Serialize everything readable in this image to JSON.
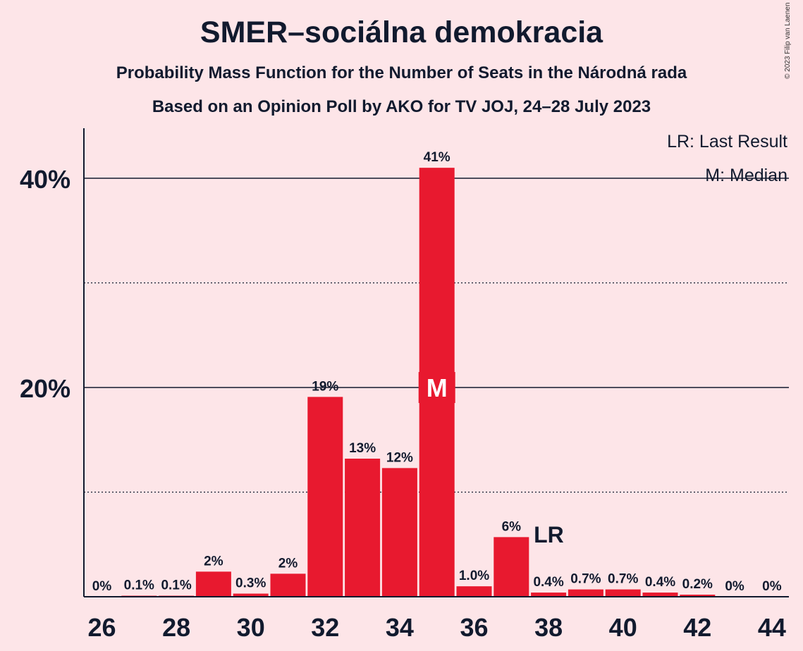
{
  "title": "SMER–sociálna demokracia",
  "subtitle": "Probability Mass Function for the Number of Seats in the Národná rada",
  "subtitle2": "Based on an Opinion Poll by AKO for TV JOJ, 24–28 July 2023",
  "copyright": "© 2023 Filip van Laenen",
  "legend": {
    "lr": "LR: Last Result",
    "m": "M: Median"
  },
  "colors": {
    "bar": "#e8192f",
    "background": "#fde5e8",
    "text": "#111a2e"
  },
  "chart_data": {
    "type": "bar",
    "x": [
      26,
      27,
      28,
      29,
      30,
      31,
      32,
      33,
      34,
      35,
      36,
      37,
      38,
      39,
      40,
      41,
      42,
      43,
      44
    ],
    "values": [
      0,
      0.1,
      0.1,
      2.4,
      0.3,
      2.2,
      19.1,
      13.2,
      12.3,
      41.0,
      1.0,
      5.7,
      0.4,
      0.7,
      0.7,
      0.4,
      0.2,
      0,
      0
    ],
    "labels": [
      "0%",
      "0.1%",
      "0.1%",
      "2%",
      "0.3%",
      "2%",
      "19%",
      "13%",
      "12%",
      "41%",
      "1.0%",
      "6%",
      "0.4%",
      "0.7%",
      "0.7%",
      "0.4%",
      "0.2%",
      "0%",
      "0%"
    ],
    "xticks": [
      "26",
      "28",
      "30",
      "32",
      "34",
      "36",
      "38",
      "40",
      "42",
      "44"
    ],
    "yticks": [
      "20%",
      "40%"
    ],
    "ylim": [
      0,
      45
    ],
    "median_seat": 35,
    "median_label": "M",
    "last_result_seat": 38,
    "last_result_label": "LR",
    "grid": true
  }
}
